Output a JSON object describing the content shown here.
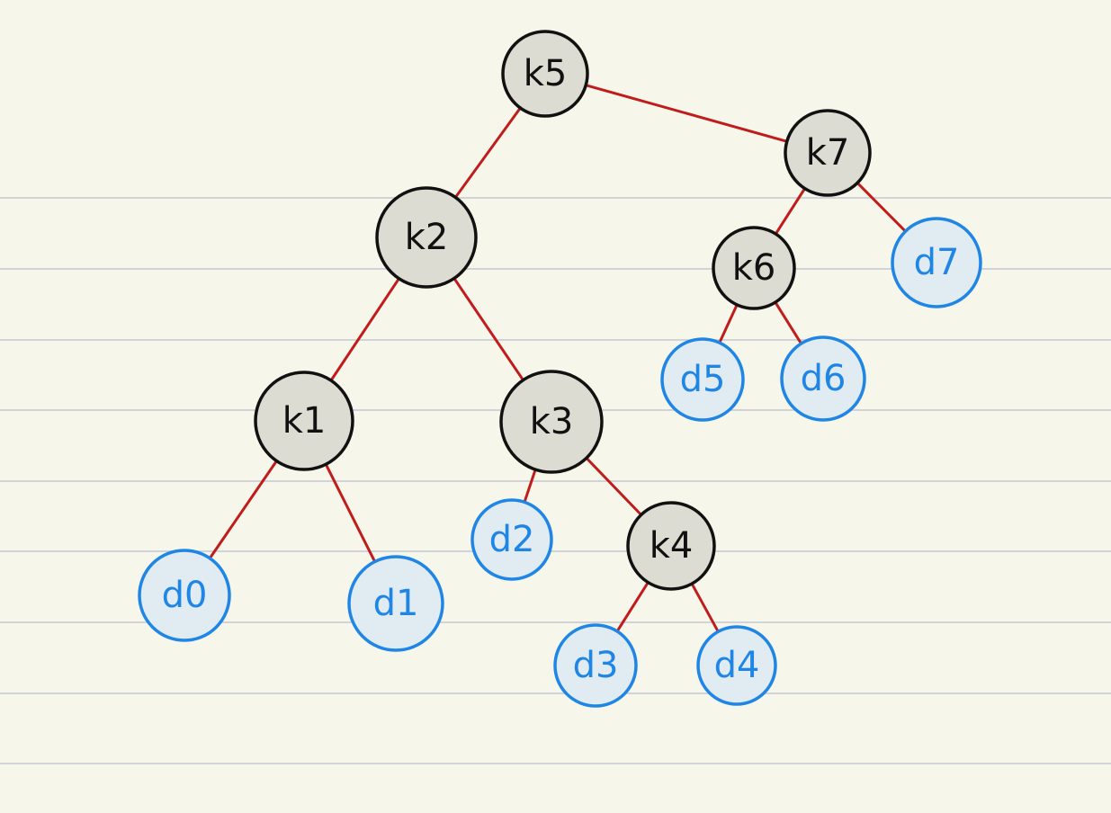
{
  "tree": {
    "keys": [
      {
        "id": "k5",
        "label": "k5"
      },
      {
        "id": "k7",
        "label": "k7"
      },
      {
        "id": "k2",
        "label": "k2"
      },
      {
        "id": "k6",
        "label": "k6"
      },
      {
        "id": "k1",
        "label": "k1"
      },
      {
        "id": "k3",
        "label": "k3"
      },
      {
        "id": "k4",
        "label": "k4"
      }
    ],
    "dummies": [
      {
        "id": "d0",
        "label": "d0"
      },
      {
        "id": "d1",
        "label": "d1"
      },
      {
        "id": "d2",
        "label": "d2"
      },
      {
        "id": "d3",
        "label": "d3"
      },
      {
        "id": "d4",
        "label": "d4"
      },
      {
        "id": "d5",
        "label": "d5"
      },
      {
        "id": "d6",
        "label": "d6"
      },
      {
        "id": "d7",
        "label": "d7"
      }
    ],
    "edges": [
      [
        "k5",
        "k2"
      ],
      [
        "k5",
        "k7"
      ],
      [
        "k7",
        "k6"
      ],
      [
        "k7",
        "d7"
      ],
      [
        "k6",
        "d5"
      ],
      [
        "k6",
        "d6"
      ],
      [
        "k2",
        "k1"
      ],
      [
        "k2",
        "k3"
      ],
      [
        "k1",
        "d0"
      ],
      [
        "k1",
        "d1"
      ],
      [
        "k3",
        "d2"
      ],
      [
        "k3",
        "k4"
      ],
      [
        "k4",
        "d3"
      ],
      [
        "k4",
        "d4"
      ]
    ]
  },
  "colors": {
    "background": "#f6f6ea",
    "ruled_line": "#d0d3d8",
    "edge": "#c01c1c",
    "key_fill": "#dcdcd2",
    "key_stroke": "#111111",
    "dummy_fill": "#e1ebf2",
    "dummy_stroke": "#1f86e6"
  }
}
